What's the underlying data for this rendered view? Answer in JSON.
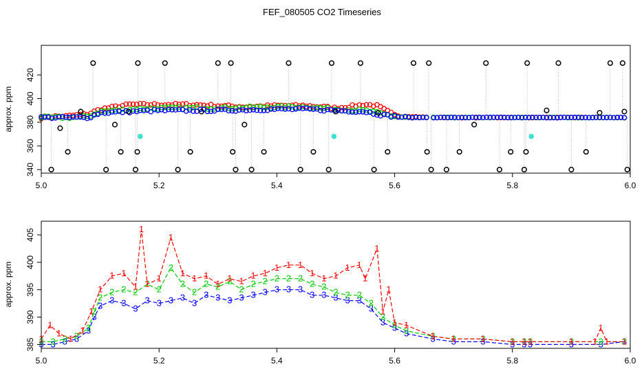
{
  "figure": {
    "title": "FEF_080505  CO2 Timeseries"
  },
  "colors": {
    "black": "#000000",
    "red": "#ff0000",
    "green": "#00cc00",
    "blue": "#0000ff",
    "cyan": "#40e0d0",
    "gray": "#bebebe"
  },
  "chart_data": [
    {
      "type": "scatter",
      "title": "FEF_080505  CO2 Timeseries",
      "xlabel": "",
      "ylabel": "approx. ppm",
      "xlim": [
        5.0,
        6.0
      ],
      "ylim": [
        337,
        445
      ],
      "xticks": [
        "5.0",
        "5.2",
        "5.4",
        "5.6",
        "5.8",
        "6.0"
      ],
      "yticks": [
        "340",
        "360",
        "380",
        "400",
        "420"
      ],
      "ytick_values": [
        340,
        360,
        380,
        400,
        420
      ],
      "grid": false,
      "black_outliers": {
        "x": [
          5.017,
          5.032,
          5.045,
          5.067,
          5.088,
          5.11,
          5.125,
          5.135,
          5.148,
          5.16,
          5.163,
          5.164,
          5.21,
          5.232,
          5.253,
          5.272,
          5.3,
          5.322,
          5.325,
          5.33,
          5.345,
          5.357,
          5.378,
          5.42,
          5.44,
          5.462,
          5.488,
          5.493,
          5.5,
          5.542,
          5.565,
          5.572,
          5.588,
          5.632,
          5.655,
          5.658,
          5.662,
          5.688,
          5.71,
          5.735,
          5.755,
          5.778,
          5.797,
          5.82,
          5.823,
          5.825,
          5.858,
          5.878,
          5.9,
          5.925,
          5.948,
          5.966,
          5.987,
          5.99,
          5.995
        ],
        "y": [
          340,
          375,
          355,
          389,
          430,
          340,
          378,
          355,
          389,
          340,
          355,
          430,
          430,
          340,
          355,
          389,
          430,
          430,
          355,
          340,
          378,
          340,
          355,
          430,
          340,
          355,
          340,
          430,
          389,
          430,
          340,
          388,
          355,
          430,
          355,
          430,
          340,
          340,
          355,
          378,
          430,
          340,
          355,
          340,
          355,
          430,
          390,
          430,
          340,
          355,
          388,
          430,
          430,
          389,
          340
        ]
      },
      "cyan_points": {
        "x": [
          5.168,
          5.497,
          5.832
        ],
        "y": [
          368,
          368,
          368
        ]
      },
      "series_profile": {
        "red_x": [
          5.0,
          5.02,
          5.04,
          5.06,
          5.08,
          5.1,
          5.15,
          5.2,
          5.25,
          5.3,
          5.35,
          5.4,
          5.45,
          5.5,
          5.55,
          5.57,
          5.6,
          5.62,
          5.665,
          5.8,
          5.85,
          5.9,
          5.95,
          5.99
        ],
        "red_y": [
          384,
          385,
          385,
          386,
          387,
          391,
          395,
          395,
          395,
          394,
          393,
          394,
          394,
          392,
          395,
          394,
          386,
          385,
          384,
          384,
          384,
          384,
          384,
          384
        ],
        "green_x": [
          5.0,
          5.05,
          5.08,
          5.1,
          5.15,
          5.2,
          5.3,
          5.4,
          5.45,
          5.5,
          5.55,
          5.58,
          5.6,
          5.62,
          5.665,
          5.99
        ],
        "green_y": [
          384,
          384,
          385,
          389,
          391,
          392,
          392,
          393,
          393,
          391,
          390,
          387,
          385,
          384,
          384,
          384
        ],
        "blue_x": [
          5.0,
          5.05,
          5.08,
          5.1,
          5.15,
          5.2,
          5.3,
          5.4,
          5.45,
          5.5,
          5.55,
          5.58,
          5.6,
          5.62,
          5.665,
          5.99
        ],
        "blue_y": [
          384,
          384,
          384,
          388,
          389,
          390,
          390,
          391,
          391,
          390,
          389,
          386,
          385,
          384,
          384,
          384
        ]
      }
    },
    {
      "type": "line",
      "title": "",
      "xlabel": "",
      "ylabel": "approx. ppm",
      "xlim": [
        5.0,
        6.0
      ],
      "ylim": [
        384.3,
        407.5
      ],
      "xticks": [
        "5.0",
        "5.2",
        "5.4",
        "5.6",
        "5.8",
        "6.0"
      ],
      "yticks": [
        "385",
        "390",
        "395",
        "400",
        "405"
      ],
      "ytick_values": [
        385,
        390,
        395,
        400,
        405
      ],
      "grid": false,
      "series": [
        {
          "marker": "1",
          "x": [
            5.0,
            5.015,
            5.03,
            5.05,
            5.07,
            5.085,
            5.1,
            5.12,
            5.14,
            5.16,
            5.17,
            5.18,
            5.2,
            5.22,
            5.24,
            5.26,
            5.28,
            5.3,
            5.32,
            5.34,
            5.36,
            5.38,
            5.4,
            5.42,
            5.44,
            5.46,
            5.48,
            5.5,
            5.52,
            5.54,
            5.55,
            5.57,
            5.58,
            5.59,
            5.6,
            5.62,
            5.665,
            5.7,
            5.75,
            5.8,
            5.82,
            5.83,
            5.9,
            5.94,
            5.95,
            5.96,
            5.99
          ],
          "y": [
            386.0,
            388.5,
            387.0,
            386.0,
            387.5,
            391.0,
            395.0,
            397.5,
            398.0,
            395.5,
            406.0,
            396.0,
            397.0,
            404.5,
            398.0,
            397.0,
            397.5,
            396.0,
            397.0,
            396.5,
            397.5,
            398.0,
            399.0,
            399.5,
            399.5,
            398.0,
            397.0,
            397.5,
            399.0,
            399.5,
            397.0,
            402.5,
            391.0,
            395.0,
            389.0,
            388.5,
            386.5,
            386.0,
            386.0,
            385.5,
            385.5,
            385.5,
            385.5,
            385.5,
            388.0,
            385.5,
            385.5
          ]
        },
        {
          "marker": "2",
          "x": [
            5.0,
            5.02,
            5.04,
            5.06,
            5.08,
            5.09,
            5.1,
            5.12,
            5.14,
            5.16,
            5.18,
            5.2,
            5.22,
            5.24,
            5.26,
            5.28,
            5.3,
            5.32,
            5.34,
            5.36,
            5.38,
            5.4,
            5.42,
            5.44,
            5.46,
            5.48,
            5.5,
            5.52,
            5.54,
            5.56,
            5.58,
            5.6,
            5.62,
            5.665,
            5.7,
            5.75,
            5.8,
            5.82,
            5.83,
            5.9,
            5.95,
            5.99
          ],
          "y": [
            385.5,
            385.5,
            386.0,
            386.5,
            388.0,
            391.0,
            393.5,
            394.5,
            395.0,
            394.5,
            396.0,
            395.0,
            399.0,
            396.0,
            394.5,
            396.0,
            395.5,
            396.5,
            395.0,
            396.0,
            396.5,
            397.0,
            397.0,
            397.0,
            396.0,
            395.5,
            394.5,
            394.0,
            394.0,
            392.5,
            390.0,
            388.5,
            387.5,
            386.5,
            386.0,
            386.0,
            385.5,
            385.5,
            385.5,
            385.5,
            385.5,
            385.5
          ]
        },
        {
          "marker": "3",
          "x": [
            5.0,
            5.02,
            5.04,
            5.06,
            5.08,
            5.09,
            5.1,
            5.12,
            5.14,
            5.16,
            5.18,
            5.2,
            5.22,
            5.24,
            5.26,
            5.28,
            5.3,
            5.32,
            5.34,
            5.36,
            5.38,
            5.4,
            5.42,
            5.44,
            5.46,
            5.48,
            5.5,
            5.52,
            5.54,
            5.56,
            5.58,
            5.6,
            5.62,
            5.665,
            5.7,
            5.75,
            5.8,
            5.82,
            5.83,
            5.9,
            5.95,
            5.99
          ],
          "y": [
            385.0,
            385.0,
            385.5,
            386.0,
            387.5,
            390.0,
            392.0,
            393.0,
            392.5,
            391.5,
            393.0,
            392.5,
            393.0,
            393.5,
            392.5,
            394.0,
            393.5,
            393.0,
            393.5,
            394.0,
            394.5,
            395.0,
            395.0,
            395.0,
            394.0,
            394.0,
            393.5,
            393.0,
            393.0,
            391.5,
            389.0,
            388.0,
            387.0,
            386.0,
            385.5,
            385.5,
            385.0,
            385.0,
            385.0,
            385.0,
            385.0,
            385.5
          ]
        }
      ]
    }
  ]
}
